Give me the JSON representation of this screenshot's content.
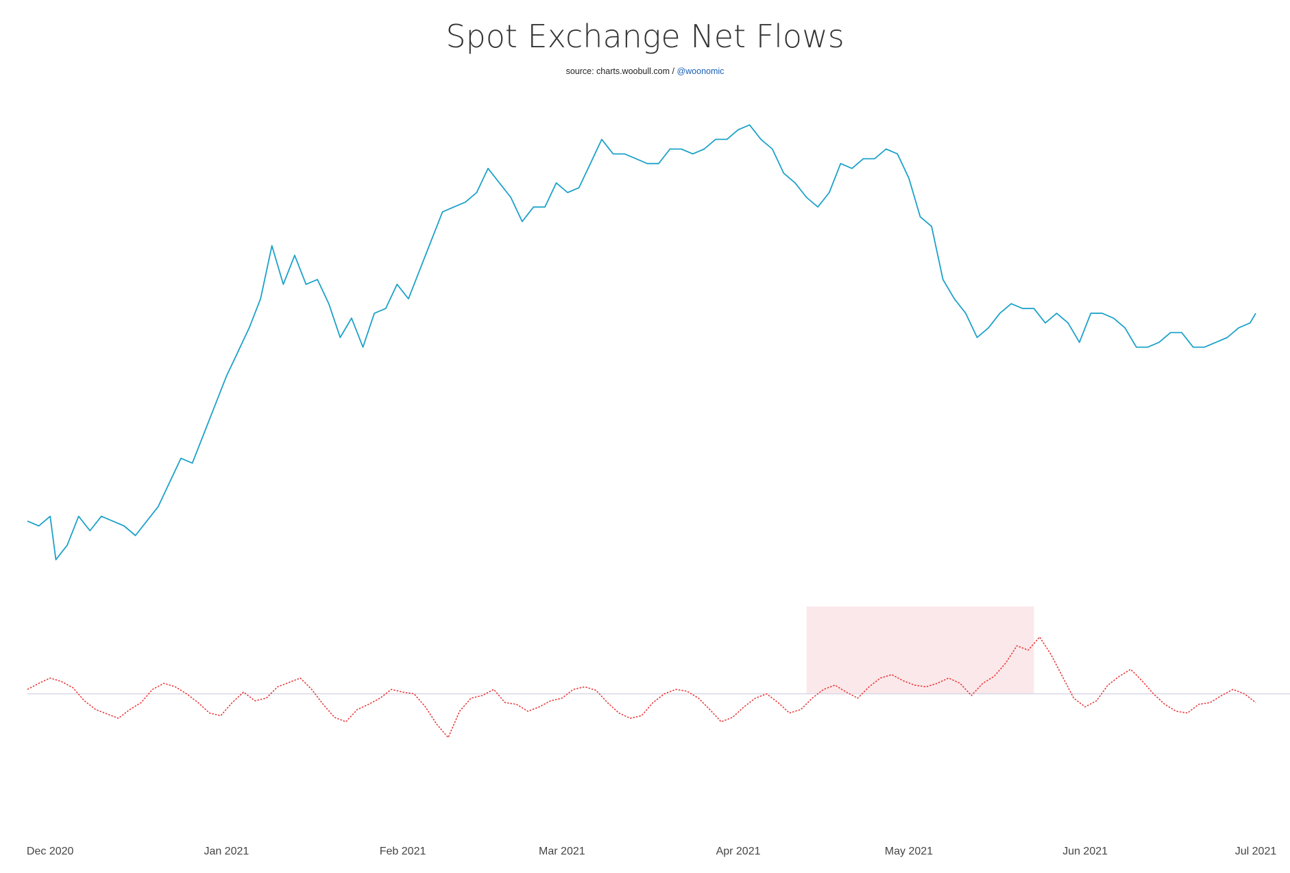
{
  "header": {
    "title": "Spot Exchange Net Flows",
    "source_text": "source: charts.woobull.com / ",
    "source_handle": "@woonomic"
  },
  "colors": {
    "price_line": "#1ba1c9",
    "flow_line": "#e83a3a",
    "highlight_fill": "#fbe8ea",
    "zero_line": "#d8d8e6",
    "tick_text": "#444444"
  },
  "chart_data": {
    "type": "line",
    "title": "Spot Exchange Net Flows",
    "xlabel": "",
    "ylabel": "",
    "x_range": [
      "2020-11-27",
      "2021-07-01"
    ],
    "grid": false,
    "legend": "none",
    "x_ticks": [
      "Dec 2020",
      "Jan 2021",
      "Feb 2021",
      "Mar 2021",
      "Apr 2021",
      "May 2021",
      "Jun 2021",
      "Jul 2021"
    ],
    "x_tick_dates": [
      "2020-12-01",
      "2021-01-01",
      "2021-02-01",
      "2021-03-01",
      "2021-04-01",
      "2021-05-01",
      "2021-06-01",
      "2021-07-01"
    ],
    "highlight_region": {
      "start": "2021-04-13",
      "end": "2021-05-23"
    },
    "series": [
      {
        "id": "price",
        "style": "solid",
        "axis": "top",
        "ylim": [
          0,
          1
        ],
        "points": [
          [
            "2020-11-27",
            0.12
          ],
          [
            "2020-11-29",
            0.11
          ],
          [
            "2020-12-01",
            0.13
          ],
          [
            "2020-12-02",
            0.04
          ],
          [
            "2020-12-04",
            0.07
          ],
          [
            "2020-12-06",
            0.13
          ],
          [
            "2020-12-08",
            0.1
          ],
          [
            "2020-12-10",
            0.13
          ],
          [
            "2020-12-12",
            0.12
          ],
          [
            "2020-12-14",
            0.11
          ],
          [
            "2020-12-16",
            0.09
          ],
          [
            "2020-12-18",
            0.12
          ],
          [
            "2020-12-20",
            0.15
          ],
          [
            "2020-12-22",
            0.2
          ],
          [
            "2020-12-24",
            0.25
          ],
          [
            "2020-12-26",
            0.24
          ],
          [
            "2020-12-28",
            0.3
          ],
          [
            "2020-12-30",
            0.36
          ],
          [
            "2021-01-01",
            0.42
          ],
          [
            "2021-01-03",
            0.47
          ],
          [
            "2021-01-05",
            0.52
          ],
          [
            "2021-01-07",
            0.58
          ],
          [
            "2021-01-09",
            0.69
          ],
          [
            "2021-01-11",
            0.61
          ],
          [
            "2021-01-13",
            0.67
          ],
          [
            "2021-01-15",
            0.61
          ],
          [
            "2021-01-17",
            0.62
          ],
          [
            "2021-01-19",
            0.57
          ],
          [
            "2021-01-21",
            0.5
          ],
          [
            "2021-01-23",
            0.54
          ],
          [
            "2021-01-25",
            0.48
          ],
          [
            "2021-01-27",
            0.55
          ],
          [
            "2021-01-29",
            0.56
          ],
          [
            "2021-01-31",
            0.61
          ],
          [
            "2021-02-02",
            0.58
          ],
          [
            "2021-02-04",
            0.64
          ],
          [
            "2021-02-06",
            0.7
          ],
          [
            "2021-02-08",
            0.76
          ],
          [
            "2021-02-10",
            0.77
          ],
          [
            "2021-02-12",
            0.78
          ],
          [
            "2021-02-14",
            0.8
          ],
          [
            "2021-02-16",
            0.85
          ],
          [
            "2021-02-18",
            0.82
          ],
          [
            "2021-02-20",
            0.79
          ],
          [
            "2021-02-22",
            0.74
          ],
          [
            "2021-02-24",
            0.77
          ],
          [
            "2021-02-26",
            0.77
          ],
          [
            "2021-02-28",
            0.82
          ],
          [
            "2021-03-02",
            0.8
          ],
          [
            "2021-03-04",
            0.81
          ],
          [
            "2021-03-06",
            0.86
          ],
          [
            "2021-03-08",
            0.91
          ],
          [
            "2021-03-10",
            0.88
          ],
          [
            "2021-03-12",
            0.88
          ],
          [
            "2021-03-14",
            0.87
          ],
          [
            "2021-03-16",
            0.86
          ],
          [
            "2021-03-18",
            0.86
          ],
          [
            "2021-03-20",
            0.89
          ],
          [
            "2021-03-22",
            0.89
          ],
          [
            "2021-03-24",
            0.88
          ],
          [
            "2021-03-26",
            0.89
          ],
          [
            "2021-03-28",
            0.91
          ],
          [
            "2021-03-30",
            0.91
          ],
          [
            "2021-04-01",
            0.93
          ],
          [
            "2021-04-03",
            0.94
          ],
          [
            "2021-04-05",
            0.91
          ],
          [
            "2021-04-07",
            0.89
          ],
          [
            "2021-04-09",
            0.84
          ],
          [
            "2021-04-11",
            0.82
          ],
          [
            "2021-04-13",
            0.79
          ],
          [
            "2021-04-15",
            0.77
          ],
          [
            "2021-04-17",
            0.8
          ],
          [
            "2021-04-19",
            0.86
          ],
          [
            "2021-04-21",
            0.85
          ],
          [
            "2021-04-23",
            0.87
          ],
          [
            "2021-04-25",
            0.87
          ],
          [
            "2021-04-27",
            0.89
          ],
          [
            "2021-04-29",
            0.88
          ],
          [
            "2021-05-01",
            0.83
          ],
          [
            "2021-05-03",
            0.75
          ],
          [
            "2021-05-05",
            0.73
          ],
          [
            "2021-05-07",
            0.62
          ],
          [
            "2021-05-09",
            0.58
          ],
          [
            "2021-05-11",
            0.55
          ],
          [
            "2021-05-13",
            0.5
          ],
          [
            "2021-05-15",
            0.52
          ],
          [
            "2021-05-17",
            0.55
          ],
          [
            "2021-05-19",
            0.57
          ],
          [
            "2021-05-21",
            0.56
          ],
          [
            "2021-05-23",
            0.56
          ],
          [
            "2021-05-25",
            0.53
          ],
          [
            "2021-05-27",
            0.55
          ],
          [
            "2021-05-29",
            0.53
          ],
          [
            "2021-05-31",
            0.49
          ],
          [
            "2021-06-02",
            0.55
          ],
          [
            "2021-06-04",
            0.55
          ],
          [
            "2021-06-06",
            0.54
          ],
          [
            "2021-06-08",
            0.52
          ],
          [
            "2021-06-10",
            0.48
          ],
          [
            "2021-06-12",
            0.48
          ],
          [
            "2021-06-14",
            0.49
          ],
          [
            "2021-06-16",
            0.51
          ],
          [
            "2021-06-18",
            0.51
          ],
          [
            "2021-06-20",
            0.48
          ],
          [
            "2021-06-22",
            0.48
          ],
          [
            "2021-06-24",
            0.49
          ],
          [
            "2021-06-26",
            0.5
          ],
          [
            "2021-06-28",
            0.52
          ],
          [
            "2021-06-30",
            0.53
          ],
          [
            "2021-07-01",
            0.55
          ]
        ]
      },
      {
        "id": "net_flows",
        "style": "dotted",
        "axis": "bottom",
        "ylim": [
          -1,
          1
        ],
        "points": [
          [
            "2020-11-27",
            0.05
          ],
          [
            "2020-11-29",
            0.12
          ],
          [
            "2020-12-01",
            0.18
          ],
          [
            "2020-12-03",
            0.14
          ],
          [
            "2020-12-05",
            0.07
          ],
          [
            "2020-12-07",
            -0.08
          ],
          [
            "2020-12-09",
            -0.18
          ],
          [
            "2020-12-11",
            -0.23
          ],
          [
            "2020-12-13",
            -0.28
          ],
          [
            "2020-12-15",
            -0.18
          ],
          [
            "2020-12-17",
            -0.1
          ],
          [
            "2020-12-19",
            0.05
          ],
          [
            "2020-12-21",
            0.12
          ],
          [
            "2020-12-23",
            0.08
          ],
          [
            "2020-12-25",
            0.0
          ],
          [
            "2020-12-27",
            -0.1
          ],
          [
            "2020-12-29",
            -0.22
          ],
          [
            "2020-12-31",
            -0.25
          ],
          [
            "2021-01-02",
            -0.1
          ],
          [
            "2021-01-04",
            0.02
          ],
          [
            "2021-01-06",
            -0.08
          ],
          [
            "2021-01-08",
            -0.05
          ],
          [
            "2021-01-10",
            0.08
          ],
          [
            "2021-01-12",
            0.13
          ],
          [
            "2021-01-14",
            0.18
          ],
          [
            "2021-01-16",
            0.05
          ],
          [
            "2021-01-18",
            -0.12
          ],
          [
            "2021-01-20",
            -0.27
          ],
          [
            "2021-01-22",
            -0.32
          ],
          [
            "2021-01-24",
            -0.18
          ],
          [
            "2021-01-26",
            -0.12
          ],
          [
            "2021-01-28",
            -0.05
          ],
          [
            "2021-01-30",
            0.05
          ],
          [
            "2021-02-01",
            0.02
          ],
          [
            "2021-02-03",
            0.0
          ],
          [
            "2021-02-05",
            -0.15
          ],
          [
            "2021-02-07",
            -0.35
          ],
          [
            "2021-02-09",
            -0.5
          ],
          [
            "2021-02-11",
            -0.2
          ],
          [
            "2021-02-13",
            -0.05
          ],
          [
            "2021-02-15",
            -0.02
          ],
          [
            "2021-02-17",
            0.05
          ],
          [
            "2021-02-19",
            -0.1
          ],
          [
            "2021-02-21",
            -0.12
          ],
          [
            "2021-02-23",
            -0.2
          ],
          [
            "2021-02-25",
            -0.15
          ],
          [
            "2021-02-27",
            -0.08
          ],
          [
            "2021-03-01",
            -0.05
          ],
          [
            "2021-03-03",
            0.05
          ],
          [
            "2021-03-05",
            0.08
          ],
          [
            "2021-03-07",
            0.04
          ],
          [
            "2021-03-09",
            -0.1
          ],
          [
            "2021-03-11",
            -0.22
          ],
          [
            "2021-03-13",
            -0.28
          ],
          [
            "2021-03-15",
            -0.25
          ],
          [
            "2021-03-17",
            -0.1
          ],
          [
            "2021-03-19",
            0.0
          ],
          [
            "2021-03-21",
            0.05
          ],
          [
            "2021-03-23",
            0.03
          ],
          [
            "2021-03-25",
            -0.05
          ],
          [
            "2021-03-27",
            -0.18
          ],
          [
            "2021-03-29",
            -0.32
          ],
          [
            "2021-03-31",
            -0.27
          ],
          [
            "2021-04-02",
            -0.15
          ],
          [
            "2021-04-04",
            -0.05
          ],
          [
            "2021-04-06",
            0.0
          ],
          [
            "2021-04-08",
            -0.1
          ],
          [
            "2021-04-10",
            -0.22
          ],
          [
            "2021-04-12",
            -0.18
          ],
          [
            "2021-04-14",
            -0.05
          ],
          [
            "2021-04-16",
            0.05
          ],
          [
            "2021-04-18",
            0.1
          ],
          [
            "2021-04-20",
            0.02
          ],
          [
            "2021-04-22",
            -0.05
          ],
          [
            "2021-04-24",
            0.08
          ],
          [
            "2021-04-26",
            0.18
          ],
          [
            "2021-04-28",
            0.22
          ],
          [
            "2021-04-30",
            0.15
          ],
          [
            "2021-05-02",
            0.1
          ],
          [
            "2021-05-04",
            0.08
          ],
          [
            "2021-05-06",
            0.12
          ],
          [
            "2021-05-08",
            0.18
          ],
          [
            "2021-05-10",
            0.12
          ],
          [
            "2021-05-12",
            -0.02
          ],
          [
            "2021-05-14",
            0.12
          ],
          [
            "2021-05-16",
            0.2
          ],
          [
            "2021-05-18",
            0.35
          ],
          [
            "2021-05-20",
            0.55
          ],
          [
            "2021-05-22",
            0.5
          ],
          [
            "2021-05-24",
            0.65
          ],
          [
            "2021-05-26",
            0.45
          ],
          [
            "2021-05-28",
            0.2
          ],
          [
            "2021-05-30",
            -0.05
          ],
          [
            "2021-06-01",
            -0.15
          ],
          [
            "2021-06-03",
            -0.08
          ],
          [
            "2021-06-05",
            0.1
          ],
          [
            "2021-06-07",
            0.2
          ],
          [
            "2021-06-09",
            0.28
          ],
          [
            "2021-06-11",
            0.15
          ],
          [
            "2021-06-13",
            0.0
          ],
          [
            "2021-06-15",
            -0.12
          ],
          [
            "2021-06-17",
            -0.2
          ],
          [
            "2021-06-19",
            -0.22
          ],
          [
            "2021-06-21",
            -0.12
          ],
          [
            "2021-06-23",
            -0.1
          ],
          [
            "2021-06-25",
            -0.02
          ],
          [
            "2021-06-27",
            0.05
          ],
          [
            "2021-06-29",
            0.0
          ],
          [
            "2021-07-01",
            -0.1
          ]
        ]
      }
    ]
  }
}
